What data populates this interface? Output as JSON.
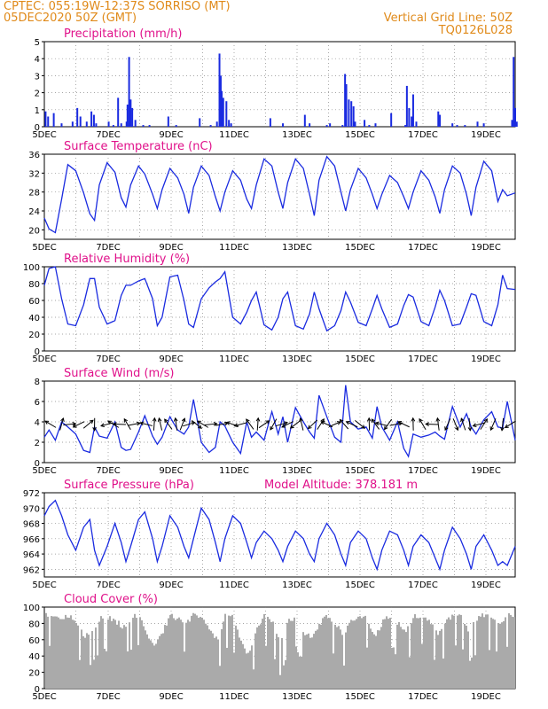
{
  "header": {
    "line1_left": "CPTEC:   055:19W-12:37S   SORRISO (MT)",
    "line2_left": "05DEC2020 50Z (GMT)",
    "line2_right": "Vertical Grid Line: 50Z",
    "line3_right": "TQ0126L028"
  },
  "colors": {
    "header": "#e08a1a",
    "title": "#e0118a",
    "line": "#1a2be0",
    "cloud": "#aaaaaa",
    "grid": "#888888"
  },
  "x_dates": [
    "5DEC",
    "7DEC",
    "9DEC",
    "11DEC",
    "13DEC",
    "15DEC",
    "17DEC",
    "19DEC"
  ],
  "chart_data": [
    {
      "type": "bar",
      "title": "Precipitation (mm/h)",
      "ylim": [
        0,
        5
      ],
      "yticks": [
        "0",
        "1",
        "2",
        "3",
        "4",
        "5"
      ],
      "x_unit": "days since 5DEC 00Z",
      "xlim": [
        0,
        15
      ],
      "bars": [
        [
          0.04,
          0.9
        ],
        [
          0.12,
          0.6
        ],
        [
          0.3,
          0.8
        ],
        [
          0.55,
          0.2
        ],
        [
          0.9,
          0.3
        ],
        [
          1.05,
          1.1
        ],
        [
          1.15,
          0.6
        ],
        [
          1.35,
          0.3
        ],
        [
          1.5,
          0.9
        ],
        [
          1.58,
          0.7
        ],
        [
          1.65,
          0.2
        ],
        [
          2.05,
          0.3
        ],
        [
          2.2,
          0.1
        ],
        [
          2.35,
          1.7
        ],
        [
          2.45,
          0.2
        ],
        [
          2.62,
          0.3
        ],
        [
          2.65,
          1.3
        ],
        [
          2.7,
          4.1
        ],
        [
          2.75,
          1.6
        ],
        [
          2.8,
          1.1
        ],
        [
          2.9,
          0.4
        ],
        [
          3.15,
          0.1
        ],
        [
          3.35,
          0.1
        ],
        [
          3.95,
          0.6
        ],
        [
          4.2,
          0.1
        ],
        [
          4.95,
          0.5
        ],
        [
          5.3,
          0.1
        ],
        [
          5.5,
          0.3
        ],
        [
          5.58,
          4.3
        ],
        [
          5.62,
          3.0
        ],
        [
          5.65,
          2.1
        ],
        [
          5.7,
          1.7
        ],
        [
          5.8,
          1.5
        ],
        [
          5.88,
          0.4
        ],
        [
          5.95,
          0.2
        ],
        [
          7.2,
          0.5
        ],
        [
          7.6,
          0.2
        ],
        [
          8.3,
          0.7
        ],
        [
          8.45,
          0.2
        ],
        [
          9.0,
          0.1
        ],
        [
          9.1,
          0.2
        ],
        [
          9.5,
          0.1
        ],
        [
          9.58,
          3.1
        ],
        [
          9.62,
          2.5
        ],
        [
          9.7,
          1.6
        ],
        [
          9.78,
          1.5
        ],
        [
          9.85,
          1.2
        ],
        [
          9.9,
          0.3
        ],
        [
          10.2,
          0.4
        ],
        [
          10.35,
          0.1
        ],
        [
          10.55,
          0.2
        ],
        [
          11.05,
          0.8
        ],
        [
          11.5,
          0.1
        ],
        [
          11.55,
          2.4
        ],
        [
          11.62,
          1.1
        ],
        [
          11.7,
          0.6
        ],
        [
          11.75,
          1.9
        ],
        [
          11.85,
          0.3
        ],
        [
          12.55,
          0.9
        ],
        [
          12.6,
          0.7
        ],
        [
          13.0,
          0.2
        ],
        [
          13.15,
          0.1
        ],
        [
          13.4,
          0.1
        ],
        [
          13.8,
          0.3
        ],
        [
          14.0,
          0.2
        ],
        [
          14.9,
          0.4
        ],
        [
          14.95,
          4.1
        ],
        [
          15.0,
          1.1
        ],
        [
          15.05,
          0.3
        ]
      ]
    },
    {
      "type": "line",
      "title": "Surface Temperature (nC)",
      "ylim": [
        18,
        36
      ],
      "yticks": [
        "20",
        "24",
        "28",
        "32",
        "36"
      ],
      "x_unit": "days since 5DEC 00Z",
      "xlim": [
        0,
        15
      ],
      "x": [
        0,
        0.15,
        0.35,
        0.55,
        0.75,
        1,
        1.25,
        1.45,
        1.6,
        1.75,
        2,
        2.25,
        2.45,
        2.6,
        2.75,
        3,
        3.2,
        3.45,
        3.6,
        3.75,
        4,
        4.25,
        4.45,
        4.6,
        4.75,
        5,
        5.25,
        5.45,
        5.6,
        5.75,
        6,
        6.25,
        6.45,
        6.6,
        6.75,
        7,
        7.25,
        7.45,
        7.6,
        7.75,
        8,
        8.25,
        8.45,
        8.6,
        8.75,
        9,
        9.25,
        9.45,
        9.6,
        9.75,
        10,
        10.25,
        10.45,
        10.6,
        10.75,
        11,
        11.25,
        11.45,
        11.6,
        11.75,
        12,
        12.25,
        12.45,
        12.6,
        12.75,
        13,
        13.25,
        13.45,
        13.6,
        13.75,
        14,
        14.25,
        14.45,
        14.6,
        14.75,
        15
      ],
      "y": [
        22.5,
        20.2,
        19.4,
        26.5,
        33.8,
        32.5,
        27.8,
        23.4,
        22.0,
        29.5,
        34.2,
        32.2,
        26.8,
        24.8,
        29.5,
        33.5,
        31.8,
        27.5,
        24.5,
        28.5,
        33.0,
        31.0,
        27.5,
        23.5,
        29.0,
        33.5,
        31.5,
        27.0,
        24.0,
        28.0,
        32.5,
        30.5,
        26.5,
        24.5,
        29.5,
        35.0,
        33.5,
        28.0,
        24.5,
        30.0,
        35.0,
        33.0,
        27.5,
        23.0,
        30.5,
        35.5,
        33.5,
        28.0,
        24.0,
        28.5,
        33.0,
        31.0,
        27.5,
        24.5,
        27.5,
        31.5,
        30.0,
        27.0,
        24.5,
        28.0,
        32.5,
        30.5,
        27.0,
        23.5,
        28.5,
        33.5,
        32.0,
        27.5,
        23.0,
        29.0,
        34.5,
        32.5,
        26.0,
        28.5,
        27.2,
        27.8
      ]
    },
    {
      "type": "line",
      "title": "Relative Humidity (%)",
      "ylim": [
        0,
        100
      ],
      "yticks": [
        "0",
        "20",
        "40",
        "60",
        "80",
        "100"
      ],
      "x_unit": "days since 5DEC 00Z",
      "xlim": [
        0,
        15
      ],
      "x": [
        0,
        0.15,
        0.35,
        0.55,
        0.75,
        1,
        1.25,
        1.45,
        1.6,
        1.75,
        2,
        2.25,
        2.45,
        2.6,
        2.75,
        3,
        3.2,
        3.45,
        3.6,
        3.75,
        4,
        4.25,
        4.45,
        4.6,
        4.75,
        5,
        5.25,
        5.45,
        5.6,
        5.75,
        6,
        6.25,
        6.45,
        6.6,
        6.75,
        7,
        7.25,
        7.45,
        7.6,
        7.75,
        8,
        8.25,
        8.45,
        8.6,
        8.75,
        9,
        9.25,
        9.45,
        9.6,
        9.75,
        10,
        10.25,
        10.45,
        10.6,
        10.75,
        11,
        11.25,
        11.45,
        11.6,
        11.75,
        12,
        12.25,
        12.45,
        12.6,
        12.75,
        13,
        13.25,
        13.45,
        13.6,
        13.75,
        14,
        14.25,
        14.45,
        14.6,
        14.75,
        15
      ],
      "y": [
        78,
        98,
        100,
        62,
        32,
        30,
        55,
        86,
        86,
        52,
        32,
        36,
        66,
        78,
        78,
        83,
        86,
        62,
        30,
        40,
        88,
        90,
        60,
        32,
        28,
        62,
        75,
        82,
        86,
        94,
        40,
        32,
        46,
        60,
        70,
        31,
        25,
        40,
        62,
        70,
        30,
        26,
        44,
        70,
        50,
        24,
        30,
        48,
        70,
        58,
        34,
        30,
        50,
        66,
        50,
        28,
        32,
        54,
        67,
        64,
        35,
        30,
        52,
        72,
        60,
        30,
        32,
        52,
        68,
        66,
        35,
        30,
        55,
        90,
        74,
        73
      ]
    },
    {
      "type": "line",
      "title": "Surface Wind (m/s)",
      "ylim": [
        0,
        8
      ],
      "yticks": [
        "0",
        "2",
        "4",
        "6",
        "8"
      ],
      "x_unit": "days since 5DEC 00Z",
      "xlim": [
        0,
        15
      ],
      "x": [
        0,
        0.15,
        0.35,
        0.55,
        0.75,
        1,
        1.25,
        1.45,
        1.6,
        1.75,
        2,
        2.25,
        2.45,
        2.6,
        2.75,
        3,
        3.2,
        3.45,
        3.6,
        3.75,
        4,
        4.25,
        4.45,
        4.6,
        4.75,
        5,
        5.25,
        5.45,
        5.6,
        5.75,
        6,
        6.25,
        6.45,
        6.6,
        6.75,
        7,
        7.25,
        7.45,
        7.6,
        7.75,
        8,
        8.25,
        8.45,
        8.6,
        8.75,
        9,
        9.25,
        9.45,
        9.6,
        9.75,
        10,
        10.25,
        10.45,
        10.6,
        10.75,
        11,
        11.25,
        11.45,
        11.6,
        11.75,
        12,
        12.25,
        12.45,
        12.6,
        12.75,
        13,
        13.25,
        13.45,
        13.6,
        13.75,
        14,
        14.25,
        14.45,
        14.6,
        14.75,
        15
      ],
      "y": [
        2.5,
        3.2,
        2.2,
        4.0,
        3.5,
        2.8,
        1.2,
        1.0,
        3.5,
        2.6,
        2.4,
        4.0,
        1.5,
        1.2,
        1.3,
        3.0,
        4.6,
        2.6,
        1.8,
        2.5,
        4.5,
        3.2,
        2.8,
        3.5,
        6.2,
        2.0,
        1.0,
        1.5,
        4.0,
        3.6,
        2.0,
        0.9,
        4.0,
        2.5,
        3.0,
        2.2,
        5.0,
        2.8,
        4.5,
        2.0,
        5.4,
        4.0,
        3.0,
        2.4,
        6.6,
        4.5,
        2.5,
        2.0,
        7.6,
        4.0,
        3.3,
        3.5,
        2.4,
        5.5,
        3.5,
        2.2,
        4.0,
        1.4,
        0.6,
        2.8,
        2.5,
        2.7,
        3.0,
        2.6,
        2.3,
        5.5,
        3.5,
        4.8,
        3.5,
        2.8,
        4.2,
        5.0,
        3.5,
        3.4,
        6.0,
        2.2
      ],
      "arrows": [
        [
          0.2,
          2.6
        ],
        [
          0.55,
          1.3
        ],
        [
          0.8,
          0.1
        ],
        [
          1.1,
          3.6
        ],
        [
          1.4,
          0.7
        ],
        [
          1.6,
          4.7
        ],
        [
          2.0,
          3.4
        ],
        [
          2.2,
          2.6
        ],
        [
          2.4,
          3.1
        ],
        [
          2.65,
          2.1
        ],
        [
          2.85,
          0.2
        ],
        [
          3.25,
          2.9
        ],
        [
          3.5,
          1.5
        ],
        [
          3.7,
          1.8
        ],
        [
          3.95,
          2.2
        ],
        [
          4.2,
          1.7
        ],
        [
          4.4,
          1.2
        ],
        [
          4.6,
          0.3
        ],
        [
          4.85,
          5.6
        ],
        [
          5.05,
          2.6
        ],
        [
          5.3,
          0.1
        ],
        [
          5.65,
          0.2
        ],
        [
          6.0,
          2.8
        ],
        [
          6.25,
          3.4
        ],
        [
          6.55,
          2.2
        ],
        [
          6.8,
          1.5
        ],
        [
          7.0,
          0.6
        ],
        [
          7.3,
          4.2
        ],
        [
          7.55,
          0.3
        ],
        [
          7.75,
          3.6
        ],
        [
          8.0,
          3.8
        ],
        [
          8.2,
          1.8
        ],
        [
          8.55,
          3.9
        ],
        [
          8.8,
          1.0
        ],
        [
          9.0,
          2.7
        ],
        [
          9.25,
          0.4
        ],
        [
          9.55,
          2.3
        ],
        [
          9.8,
          2.7
        ],
        [
          10.05,
          5.6
        ],
        [
          10.35,
          1.6
        ],
        [
          10.55,
          2.2
        ],
        [
          10.75,
          2.9
        ],
        [
          10.95,
          4.1
        ],
        [
          11.2,
          0.2
        ],
        [
          11.45,
          2.7
        ],
        [
          11.75,
          1.6
        ],
        [
          12.05,
          2.1
        ],
        [
          12.35,
          3.1
        ],
        [
          12.55,
          1.7
        ],
        [
          12.85,
          4.3
        ],
        [
          13.1,
          5.1
        ],
        [
          13.35,
          1.9
        ],
        [
          13.55,
          4.8
        ],
        [
          13.85,
          3.4
        ],
        [
          14.0,
          1.0
        ],
        [
          14.3,
          4.3
        ],
        [
          14.6,
          4.6
        ],
        [
          14.85,
          3.7
        ]
      ]
    },
    {
      "type": "line",
      "title": "Surface Pressure (hPa)",
      "annotation": "Model Altitude: 378.181 m",
      "ylim": [
        961,
        972
      ],
      "yticks": [
        "962",
        "964",
        "966",
        "968",
        "970",
        "972"
      ],
      "x_unit": "days since 5DEC 00Z",
      "xlim": [
        0,
        15
      ],
      "x": [
        0,
        0.15,
        0.35,
        0.55,
        0.75,
        1,
        1.25,
        1.45,
        1.6,
        1.75,
        2,
        2.25,
        2.45,
        2.6,
        2.75,
        3,
        3.2,
        3.45,
        3.6,
        3.75,
        4,
        4.25,
        4.45,
        4.6,
        4.75,
        5,
        5.25,
        5.45,
        5.6,
        5.75,
        6,
        6.25,
        6.45,
        6.6,
        6.75,
        7,
        7.25,
        7.45,
        7.6,
        7.75,
        8,
        8.25,
        8.45,
        8.6,
        8.75,
        9,
        9.25,
        9.45,
        9.6,
        9.75,
        10,
        10.25,
        10.45,
        10.6,
        10.75,
        11,
        11.25,
        11.45,
        11.6,
        11.75,
        12,
        12.25,
        12.45,
        12.6,
        12.75,
        13,
        13.25,
        13.45,
        13.6,
        13.75,
        14,
        14.25,
        14.45,
        14.6,
        14.75,
        15
      ],
      "y": [
        969.0,
        970.2,
        971.0,
        969.0,
        966.5,
        964.5,
        967.5,
        968.5,
        964.5,
        962.5,
        965.0,
        968.0,
        965.5,
        963.0,
        965.0,
        968.5,
        969.5,
        966.0,
        963.0,
        965.0,
        969.0,
        967.5,
        965.0,
        963.5,
        966.0,
        970.0,
        968.5,
        965.5,
        963.0,
        966.0,
        969.0,
        968.0,
        965.5,
        963.5,
        965.5,
        967.0,
        966.0,
        964.5,
        963.0,
        965.0,
        967.0,
        966.0,
        964.0,
        963.0,
        966.0,
        968.0,
        966.5,
        964.0,
        962.5,
        965.5,
        967.0,
        966.0,
        963.5,
        962.0,
        964.5,
        967.0,
        966.5,
        964.5,
        962.5,
        965.0,
        966.5,
        965.5,
        963.5,
        962.0,
        964.5,
        967.5,
        966.0,
        964.0,
        962.0,
        965.0,
        966.5,
        964.5,
        962.5,
        963.0,
        962.5,
        965.0
      ]
    },
    {
      "type": "area",
      "title": "Cloud Cover (%)",
      "ylim": [
        0,
        100
      ],
      "yticks": [
        "0",
        "20",
        "40",
        "60",
        "80",
        "100"
      ],
      "x_unit": "days since 5DEC 00Z",
      "xlim": [
        0,
        15
      ],
      "x": [
        0,
        0.25,
        0.5,
        0.75,
        1,
        1.25,
        1.5,
        1.75,
        2,
        2.25,
        2.5,
        2.75,
        3,
        3.25,
        3.5,
        3.75,
        4,
        4.25,
        4.5,
        4.75,
        5,
        5.25,
        5.5,
        5.75,
        6,
        6.25,
        6.5,
        6.75,
        7,
        7.25,
        7.5,
        7.75,
        8,
        8.25,
        8.5,
        8.75,
        9,
        9.25,
        9.5,
        9.75,
        10,
        10.25,
        10.5,
        10.75,
        11,
        11.25,
        11.5,
        11.75,
        12,
        12.25,
        12.5,
        12.75,
        13,
        13.25,
        13.5,
        13.75,
        14,
        14.25,
        14.5,
        14.75,
        15
      ],
      "y": [
        94,
        90,
        87,
        93,
        83,
        68,
        72,
        89,
        91,
        86,
        79,
        90,
        94,
        70,
        58,
        74,
        93,
        89,
        84,
        95,
        91,
        76,
        62,
        94,
        90,
        60,
        44,
        78,
        93,
        86,
        58,
        88,
        91,
        73,
        66,
        84,
        93,
        81,
        71,
        86,
        94,
        90,
        68,
        85,
        93,
        83,
        74,
        91,
        94,
        88,
        70,
        85,
        95,
        91,
        74,
        88,
        94,
        91,
        80,
        95,
        93
      ]
    }
  ]
}
